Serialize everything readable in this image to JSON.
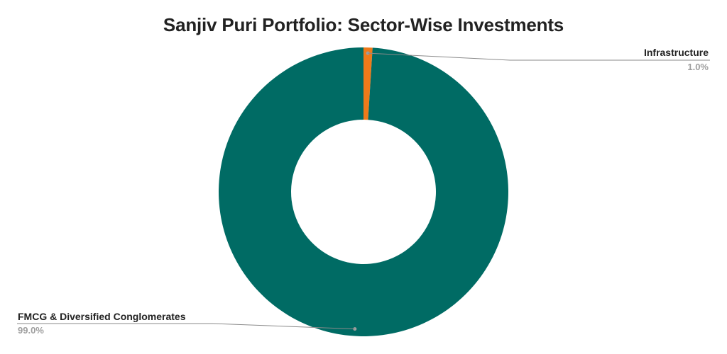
{
  "chart_data": {
    "type": "pie",
    "title": "Sanjiv Puri Portfolio: Sector-Wise Investments",
    "slices": [
      {
        "label": "Infrastructure",
        "value": 1.0,
        "value_label": "1.0%",
        "color": "#ef7a1a"
      },
      {
        "label": "FMCG & Diversified Conglomerates",
        "value": 99.0,
        "value_label": "99.0%",
        "color": "#006b64"
      }
    ],
    "donut": true
  }
}
